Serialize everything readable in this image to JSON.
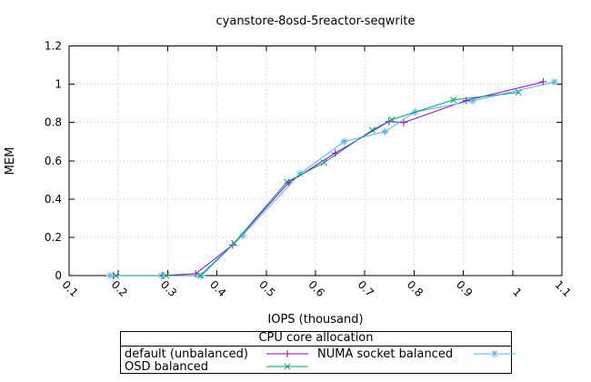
{
  "chart_data": {
    "type": "line",
    "title": "cyanstore-8osd-5reactor-seqwrite",
    "xlabel": "IOPS (thousand)",
    "ylabel": "MEM",
    "xlim": [
      0.1,
      1.1
    ],
    "ylim": [
      0,
      1.2
    ],
    "grid": true,
    "background": "#ffffff",
    "grid_color": "#c4c4c4",
    "xticks": {
      "values": [
        0.1,
        0.2,
        0.3,
        0.4,
        0.5,
        0.6,
        0.7,
        0.8,
        0.9,
        1.0,
        1.1
      ],
      "labels": [
        "0.1",
        "0.2",
        "0.3",
        "0.4",
        "0.5",
        "0.6",
        "0.7",
        "0.8",
        "0.9",
        "1",
        "1.1"
      ],
      "rotation": 45
    },
    "yticks": {
      "values": [
        0,
        0.2,
        0.4,
        0.6,
        0.8,
        1.0,
        1.2
      ],
      "labels": [
        "0",
        "0.2",
        "0.4",
        "0.6",
        "0.8",
        "1",
        "1.2"
      ]
    },
    "legend": {
      "title": "CPU core allocation",
      "position": "bottom-outside",
      "columns": 2
    },
    "series": [
      {
        "name": "default (unbalanced)",
        "color": "#9400D3",
        "marker": "plus",
        "points": [
          [
            0.19,
            0
          ],
          [
            0.29,
            0
          ],
          [
            0.357,
            0.01
          ],
          [
            0.432,
            0.16
          ],
          [
            0.545,
            0.485
          ],
          [
            0.64,
            0.64
          ],
          [
            0.749,
            0.805
          ],
          [
            0.779,
            0.8
          ],
          [
            0.906,
            0.915
          ],
          [
            1.062,
            1.012
          ]
        ]
      },
      {
        "name": "NUMA socket balanced",
        "color": "#56B4E9",
        "marker": "asterisk",
        "points": [
          [
            0.183,
            0
          ],
          [
            0.287,
            0
          ],
          [
            0.369,
            0
          ],
          [
            0.452,
            0.21
          ],
          [
            0.569,
            0.533
          ],
          [
            0.658,
            0.7
          ],
          [
            0.741,
            0.752
          ],
          [
            0.802,
            0.855
          ],
          [
            0.919,
            0.913
          ],
          [
            1.085,
            1.012
          ]
        ]
      },
      {
        "name": "OSD balanced",
        "color": "#009E73",
        "marker": "cross",
        "points": [
          [
            0.195,
            0
          ],
          [
            0.297,
            0
          ],
          [
            0.366,
            0
          ],
          [
            0.435,
            0.17
          ],
          [
            0.542,
            0.49
          ],
          [
            0.617,
            0.59
          ],
          [
            0.715,
            0.76
          ],
          [
            0.755,
            0.815
          ],
          [
            0.88,
            0.918
          ],
          [
            1.012,
            0.957
          ]
        ]
      }
    ]
  }
}
